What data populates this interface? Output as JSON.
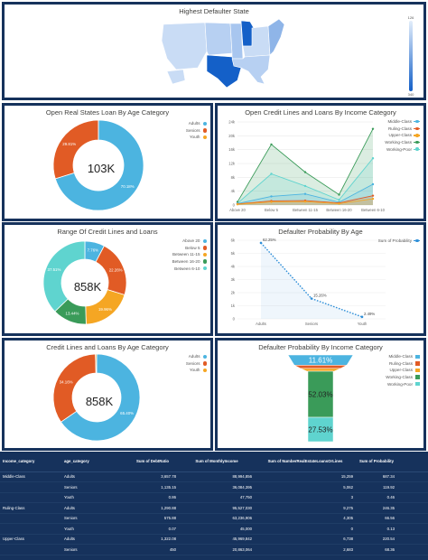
{
  "map": {
    "title": "Highest Defaulter State",
    "scale_max": "126",
    "scale_min": "340",
    "colors": {
      "low": "#c9dcf5",
      "mid": "#8fb5e8",
      "high": "#1460c8"
    }
  },
  "donut1": {
    "title": "Open Real States Loan By Age Category",
    "total": "103K",
    "legend": [
      {
        "label": "Adults",
        "color": "#4cb4e0"
      },
      {
        "label": "Seniors",
        "color": "#e15b25"
      },
      {
        "label": "Youth",
        "color": "#f5a623"
      }
    ]
  },
  "linechart": {
    "title": "Open Credit Lines and Loans By Income Category",
    "legend": [
      {
        "label": "Middle-Class",
        "color": "#4cb4e0"
      },
      {
        "label": "Ruling-Class",
        "color": "#e15b25"
      },
      {
        "label": "Upper-Class",
        "color": "#f5a623"
      },
      {
        "label": "Working-Class",
        "color": "#3a9b59"
      },
      {
        "label": "Working-Poor",
        "color": "#5fd4cf"
      }
    ]
  },
  "donut2": {
    "title": "Range Of Credit Lines and Loans",
    "total": "858K",
    "legend": [
      {
        "label": "Above 20",
        "color": "#4cb4e0"
      },
      {
        "label": "Below 5",
        "color": "#e15b25"
      },
      {
        "label": "Between 11-15",
        "color": "#f5a623"
      },
      {
        "label": "Between 16-20",
        "color": "#3a9b59"
      },
      {
        "label": "Between 6-10",
        "color": "#5fd4cf"
      }
    ]
  },
  "probage": {
    "title": "Defaulter Probability By Age",
    "legend": [
      {
        "label": "Sum of Probability",
        "color": "#2f8fd8"
      }
    ]
  },
  "donut3": {
    "title": "Credit Lines and Loans By Age Category",
    "total": "858K",
    "legend": [
      {
        "label": "Adults",
        "color": "#4cb4e0"
      },
      {
        "label": "Seniors",
        "color": "#e15b25"
      },
      {
        "label": "Youth",
        "color": "#f5a623"
      }
    ]
  },
  "funnel": {
    "title": "Defaulter Probability By Income Category",
    "legend": [
      {
        "label": "Middle-Class",
        "color": "#4cb4e0"
      },
      {
        "label": "Ruling-Class",
        "color": "#e15b25"
      },
      {
        "label": "Upper-Class",
        "color": "#f5a623"
      },
      {
        "label": "Working-Class",
        "color": "#3a9b59"
      },
      {
        "label": "Working-Poor",
        "color": "#5fd4cf"
      }
    ]
  },
  "table": {
    "headers": [
      "Income_category",
      "age_category",
      "Sum of DebtRatio",
      "Sum of MonthlyIncome",
      "Sum of NumberRealEstateLoansOrLines",
      "Sum of Probability",
      ""
    ],
    "rows": [
      [
        "Middle-Class",
        "Adults",
        "3,657.78",
        "88,994,856",
        "15,259",
        "687.34"
      ],
      [
        "",
        "Seniors",
        "1,135.15",
        "36,084,395",
        "5,062",
        "119.92"
      ],
      [
        "",
        "Youth",
        "0.86",
        "47,750",
        "3",
        "0.46"
      ],
      [
        "Ruling-Class",
        "Adults",
        "1,290.88",
        "95,527,030",
        "9,275",
        "246.35"
      ],
      [
        "",
        "Seniors",
        "575.88",
        "63,236,906",
        "4,305",
        "66.56"
      ],
      [
        "",
        "Youth",
        "0.07",
        "45,000",
        "0",
        "0.13"
      ],
      [
        "Upper-Class",
        "Adults",
        "1,322.08",
        "45,969,842",
        "6,738",
        "220.54"
      ],
      [
        "",
        "Seniors",
        "450",
        "20,863,064",
        "2,683",
        "68.36"
      ]
    ]
  },
  "chart_data": [
    {
      "type": "pie",
      "title": "Open Real States Loan By Age Category",
      "categories": [
        "Adults",
        "Seniors",
        "Youth"
      ],
      "values": [
        70.18,
        29.81,
        0.01
      ],
      "labels": [
        "70.18%",
        "29.81%"
      ],
      "center_label": "103K"
    },
    {
      "type": "area",
      "title": "Open Credit Lines and Loans By Income Category",
      "categories": [
        "Above 20",
        "Below 5",
        "Between 11-15",
        "Between 16-20",
        "Between 6-10"
      ],
      "ytick_labels": [
        "0",
        "4k",
        "8k",
        "12k",
        "16k",
        "20k",
        "24k"
      ],
      "ylim": [
        0,
        24000
      ],
      "series": [
        {
          "name": "Middle-Class",
          "values": [
            400,
            2500,
            3200,
            800,
            6000
          ]
        },
        {
          "name": "Ruling-Class",
          "values": [
            300,
            1200,
            1300,
            600,
            2700
          ]
        },
        {
          "name": "Upper-Class",
          "values": [
            200,
            900,
            1000,
            400,
            1800
          ]
        },
        {
          "name": "Working-Class",
          "values": [
            900,
            17500,
            9500,
            3000,
            22000
          ]
        },
        {
          "name": "Working-Poor",
          "values": [
            500,
            9000,
            5500,
            1500,
            13500
          ]
        }
      ]
    },
    {
      "type": "pie",
      "title": "Range Of Credit Lines and Loans",
      "categories": [
        "Above 20",
        "Below 5",
        "Between 11-15",
        "Between 16-20",
        "Between 6-10"
      ],
      "values": [
        7.76,
        22.26,
        19.96,
        13.44,
        37.51
      ],
      "labels": [
        "7.76%",
        "22.26%",
        "19.96%",
        "13.44%",
        "37.51%"
      ],
      "center_label": "858K"
    },
    {
      "type": "line",
      "title": "Defaulter Probability By Age",
      "categories": [
        "Adults",
        "Seniors",
        "Youth"
      ],
      "ytick_labels": [
        "0",
        "1k",
        "2k",
        "3k",
        "4k",
        "5k",
        "6k"
      ],
      "ylim": [
        0,
        6000
      ],
      "series": [
        {
          "name": "Sum of Probability",
          "values": [
            5800,
            1550,
            150
          ]
        }
      ],
      "labels": [
        "62.25%",
        "15.26%",
        "2.49%"
      ]
    },
    {
      "type": "pie",
      "title": "Credit Lines and Loans By Age Category",
      "categories": [
        "Adults",
        "Seniors",
        "Youth"
      ],
      "values": [
        65.4,
        34.16,
        0.44
      ],
      "labels": [
        "65.40%",
        "34.16%"
      ],
      "center_label": "858K"
    },
    {
      "type": "bar",
      "title": "Defaulter Probability By Income Category",
      "categories": [
        "Middle-Class",
        "Ruling-Class",
        "Upper-Class",
        "Working-Class",
        "Working-Poor"
      ],
      "values": [
        11.61,
        3.6,
        3.2,
        52.03,
        27.53
      ],
      "labels": [
        "11.61%",
        "",
        "",
        "52.03%",
        "27.53%"
      ]
    }
  ]
}
